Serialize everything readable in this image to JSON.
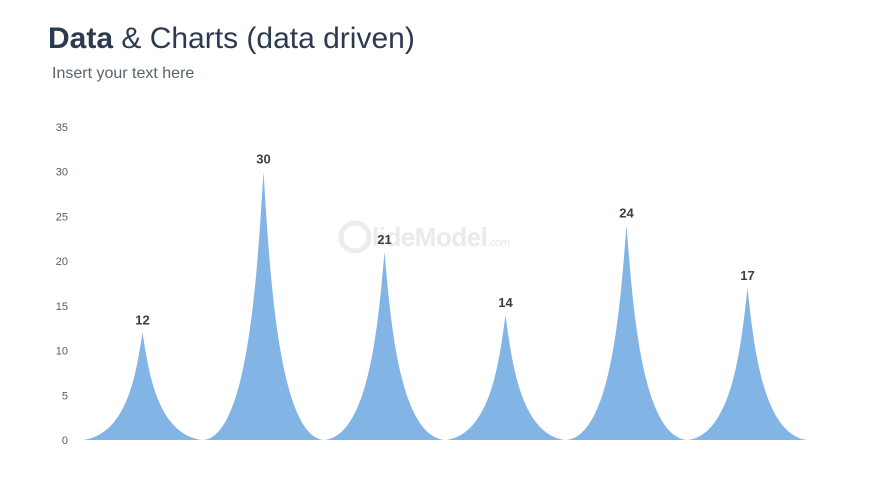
{
  "header": {
    "title_bold": "Data",
    "title_rest": " & Charts (data driven)",
    "subtitle": "Insert your text here"
  },
  "watermark": {
    "text": "lideModel",
    "suffix": ".com"
  },
  "colors": {
    "spike": "#82b5e6",
    "title": "#2b3a4e",
    "label": "#3a3f47"
  },
  "chart_data": {
    "type": "bar",
    "mark": "spike",
    "categories": [
      "",
      "",
      "",
      "",
      "",
      ""
    ],
    "values": [
      12,
      30,
      21,
      14,
      24,
      17
    ],
    "data_labels": [
      "12",
      "30",
      "21",
      "14",
      "24",
      "17"
    ],
    "yticks": [
      0,
      5,
      10,
      15,
      20,
      25,
      30,
      35
    ],
    "ylim": [
      0,
      35
    ],
    "grid": false,
    "title": "",
    "xlabel": "",
    "ylabel": ""
  }
}
